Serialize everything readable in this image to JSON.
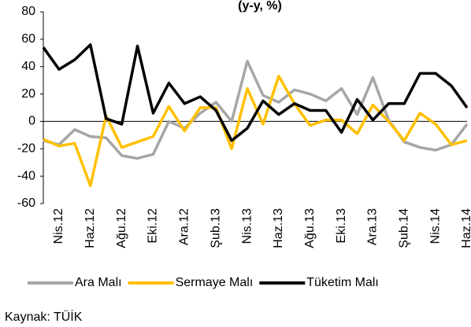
{
  "chart_data": {
    "type": "line",
    "title": "(y-y, %)",
    "categories": [
      null,
      "Nis.12",
      null,
      "Haz.12",
      null,
      "Ağu.12",
      null,
      "Eki.12",
      null,
      "Ara.12",
      null,
      "Şub.13",
      null,
      "Nis.13",
      null,
      "Haz.13",
      null,
      "Ağu.13",
      null,
      "Eki.13",
      null,
      "Ara.13",
      null,
      "Şub.14",
      null,
      "Nis.14",
      null,
      "Haz.14"
    ],
    "series": [
      {
        "name": "Ara Malı",
        "color": "#a6a6a6",
        "values": [
          -14,
          -17,
          -6,
          -11,
          -12,
          -25,
          -27,
          -24,
          0,
          -5,
          6,
          14,
          0,
          44,
          19,
          14,
          23,
          20,
          15,
          24,
          5,
          32,
          1,
          -15,
          -19,
          -21,
          -17,
          -2
        ]
      },
      {
        "name": "Sermaye Malı",
        "color": "#ffc000",
        "values": [
          -13,
          -18,
          -16,
          -47,
          4,
          -19,
          -15,
          -11,
          11,
          -7,
          10,
          10,
          -20,
          24,
          -2,
          33,
          13,
          -3,
          1,
          1,
          -9,
          12,
          0,
          -14,
          6,
          -2,
          -17,
          -14
        ]
      },
      {
        "name": "Tüketim Malı",
        "color": "#000000",
        "values": [
          54,
          38,
          45,
          56,
          2,
          -2,
          55,
          6,
          28,
          13,
          18,
          8,
          -14,
          -5,
          15,
          5,
          13,
          8,
          8,
          -8,
          16,
          1,
          13,
          13,
          35,
          35,
          26,
          10
        ]
      }
    ],
    "ylim": [
      -60,
      80
    ],
    "yticks": [
      -60,
      -40,
      -20,
      0,
      20,
      40,
      60,
      80
    ],
    "source": "Kaynak: TÜİK"
  }
}
